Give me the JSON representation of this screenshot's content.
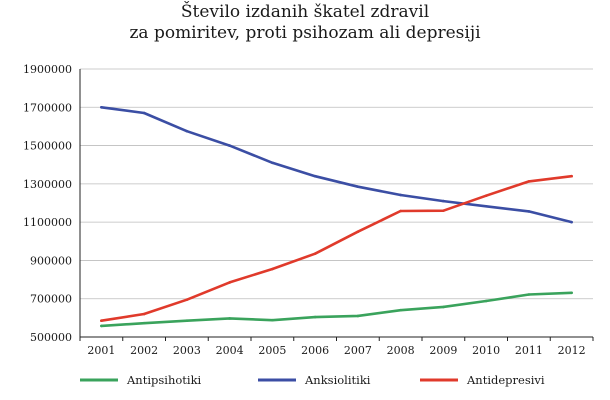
{
  "chart_data": {
    "type": "line",
    "title_lines": [
      "Število izdanih škatel zdravil",
      "za pomiritev, proti psihozam ali depresiji"
    ],
    "xlabel": "",
    "ylabel": "",
    "x": [
      "2001",
      "2002",
      "2003",
      "2004",
      "2005",
      "2006",
      "2007",
      "2008",
      "2009",
      "2010",
      "2011",
      "2012"
    ],
    "yticks": [
      "1900000",
      "1700000",
      "1500000",
      "1300000",
      "1100000",
      "900000",
      "700000",
      "500000"
    ],
    "ylim": [
      500000,
      1900000
    ],
    "grid": true,
    "legend": "bottom",
    "series": [
      {
        "name": "Antipsihotiki",
        "color": "#3aa35c",
        "values": [
          558000,
          572000,
          585000,
          597000,
          588000,
          604000,
          610000,
          640000,
          657000,
          688000,
          722000,
          731000
        ]
      },
      {
        "name": "Anksiolitiki",
        "color": "#3b4ea4",
        "values": [
          1700000,
          1670000,
          1575000,
          1500000,
          1410000,
          1340000,
          1285000,
          1242000,
          1210000,
          1183000,
          1156000,
          1100000
        ]
      },
      {
        "name": "Antidepresivi",
        "color": "#e03a2b",
        "values": [
          585000,
          620000,
          695000,
          785000,
          855000,
          935000,
          1050000,
          1158000,
          1160000,
          1238000,
          1313000,
          1340000
        ]
      }
    ]
  }
}
